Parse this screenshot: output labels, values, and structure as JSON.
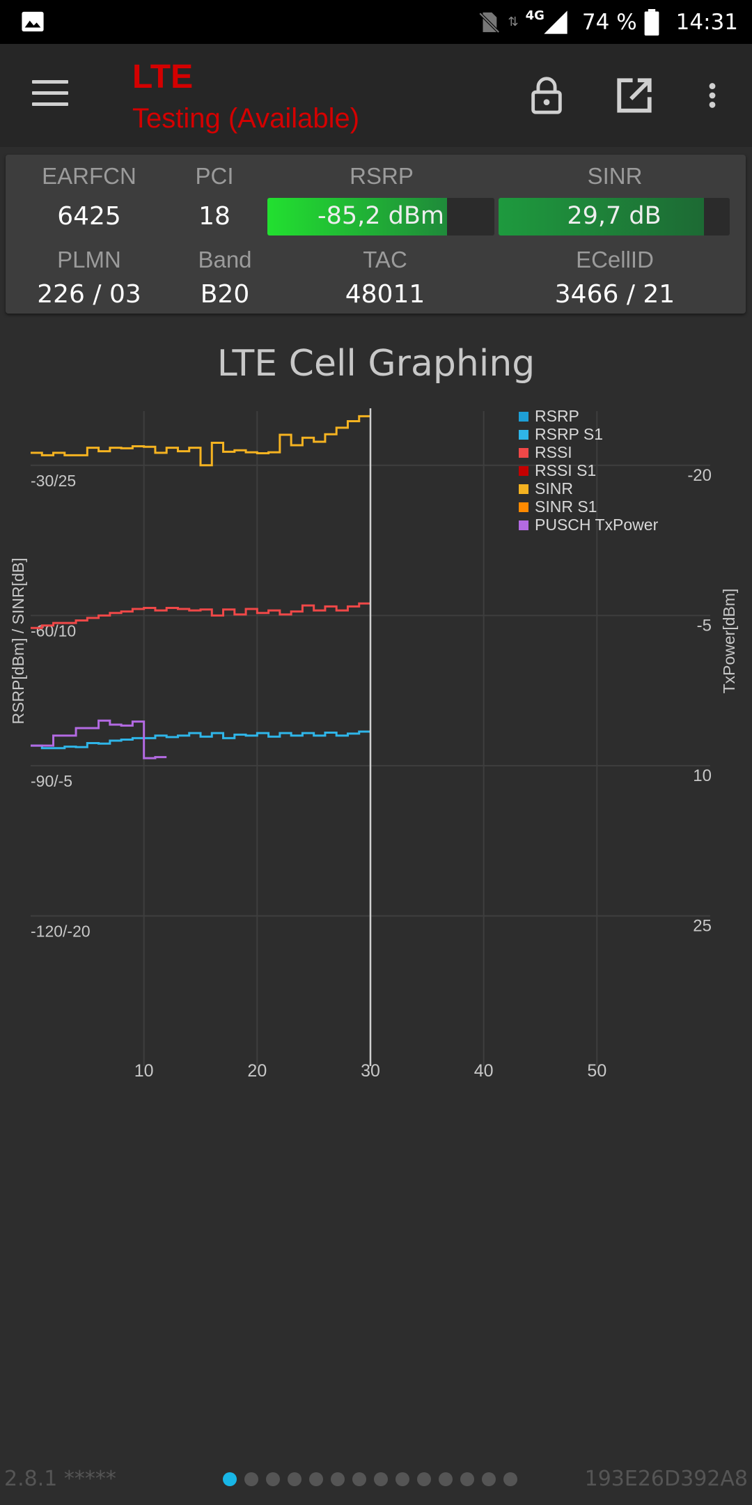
{
  "status_bar": {
    "network": "4G",
    "battery": "74 %",
    "time": "14:31"
  },
  "toolbar": {
    "title": "LTE",
    "subtitle": "Testing (Available)"
  },
  "panel": {
    "earfcn_label": "EARFCN",
    "earfcn": "6425",
    "pci_label": "PCI",
    "pci": "18",
    "rsrp_label": "RSRP",
    "rsrp": "-85,2 dBm",
    "rsrp_fill": 0.79,
    "sinr_label": "SINR",
    "sinr": "29,7 dB",
    "sinr_fill": 0.89,
    "plmn_label": "PLMN",
    "plmn": "226 / 03",
    "band_label": "Band",
    "band": "B20",
    "tac_label": "TAC",
    "tac": "48011",
    "ecellid_label": "ECellID",
    "ecellid": "3466 / 21"
  },
  "chart_title": "LTE Cell Graphing",
  "chart_data": {
    "type": "line",
    "title": "LTE Cell Graphing",
    "xlabel": "",
    "ylabel": "RSRP[dBm] / SINR[dB]",
    "y2label": "TxPower[dBm]",
    "xlim": [
      0,
      60
    ],
    "ylim": [
      -150,
      -15
    ],
    "x_ticks": [
      "10",
      "20",
      "30",
      "40",
      "50"
    ],
    "y_ticks": [
      {
        "value": -30,
        "label": "-30/25"
      },
      {
        "value": -60,
        "label": "-60/10"
      },
      {
        "value": -90,
        "label": "-90/-5"
      },
      {
        "value": -120,
        "label": "-120/-20"
      }
    ],
    "y2_ticks": [
      {
        "value": -30,
        "label": "-20"
      },
      {
        "value": -60,
        "label": "-5"
      },
      {
        "value": -90,
        "label": "10"
      },
      {
        "value": -120,
        "label": "25"
      }
    ],
    "cursor_x": 30,
    "grid": true,
    "legend_position": "top-right",
    "series": [
      {
        "name": "RSRP",
        "color": "#1e9fd6",
        "points": []
      },
      {
        "name": "RSRP S1",
        "color": "#2fb5e8",
        "x": [
          0,
          1,
          2,
          3,
          4,
          5,
          6,
          7,
          8,
          9,
          10,
          11,
          12,
          13,
          14,
          15,
          16,
          17,
          18,
          19,
          20,
          21,
          22,
          23,
          24,
          25,
          26,
          27,
          28,
          29,
          30
        ],
        "y": [
          -86,
          -86.5,
          -86.5,
          -86.2,
          -86.3,
          -85.5,
          -85.6,
          -85,
          -84.8,
          -84.5,
          -84.5,
          -84,
          -84.3,
          -84,
          -83.5,
          -84.2,
          -83.5,
          -84.5,
          -83.8,
          -84,
          -83.5,
          -84.2,
          -83.5,
          -84,
          -83.5,
          -84,
          -83.4,
          -84,
          -83.6,
          -83.2,
          -83.2
        ]
      },
      {
        "name": "RSSI",
        "color": "#f04848",
        "x": [
          0,
          1,
          2,
          3,
          4,
          5,
          6,
          7,
          8,
          9,
          10,
          11,
          12,
          13,
          14,
          15,
          16,
          17,
          18,
          19,
          20,
          21,
          22,
          23,
          24,
          25,
          26,
          27,
          28,
          29,
          30
        ],
        "y": [
          -62.5,
          -62,
          -61.5,
          -61.5,
          -61,
          -60.5,
          -60,
          -59.5,
          -59.2,
          -58.7,
          -58.5,
          -59,
          -58.5,
          -58.7,
          -59,
          -58.8,
          -60,
          -58.8,
          -59.8,
          -58.7,
          -59.5,
          -59,
          -59.8,
          -59.2,
          -58,
          -59,
          -58.2,
          -59,
          -58.2,
          -57.6,
          -57.6
        ]
      },
      {
        "name": "RSSI S1",
        "color": "#c40000",
        "points": []
      },
      {
        "name": "SINR",
        "color": "#f5b321",
        "x": [
          0,
          1,
          2,
          3,
          4,
          5,
          6,
          7,
          8,
          9,
          10,
          11,
          12,
          13,
          14,
          15,
          16,
          17,
          18,
          19,
          20,
          21,
          22,
          23,
          24,
          25,
          26,
          27,
          28,
          29,
          30
        ],
        "y": [
          -27.5,
          -28,
          -27.5,
          -28,
          -28,
          -26.5,
          -27.2,
          -26.5,
          -26.6,
          -26.2,
          -26.3,
          -27.5,
          -26.5,
          -27.2,
          -26.5,
          -30,
          -25.5,
          -27.3,
          -27,
          -27.4,
          -27.6,
          -27.4,
          -23.9,
          -26,
          -24.5,
          -25.3,
          -23.8,
          -22.5,
          -21.2,
          -20.2,
          -20.2
        ]
      },
      {
        "name": "SINR S1",
        "color": "#ff8a00",
        "points": []
      },
      {
        "name": "PUSCH TxPower",
        "color": "#b36ae2",
        "axis": "y2",
        "x": [
          0,
          1,
          2,
          3,
          4,
          5,
          6,
          7,
          8,
          9,
          10,
          11,
          12
        ],
        "y": [
          -86,
          -86,
          -84,
          -84,
          -82.5,
          -82.5,
          -81,
          -81.8,
          -82,
          -81.2,
          -88.5,
          -88.3,
          -88.3
        ]
      }
    ]
  },
  "footer": {
    "version": "2.8.1 *****",
    "device_id": "193E26D392A8",
    "page_count": 14,
    "active_page": 0
  }
}
